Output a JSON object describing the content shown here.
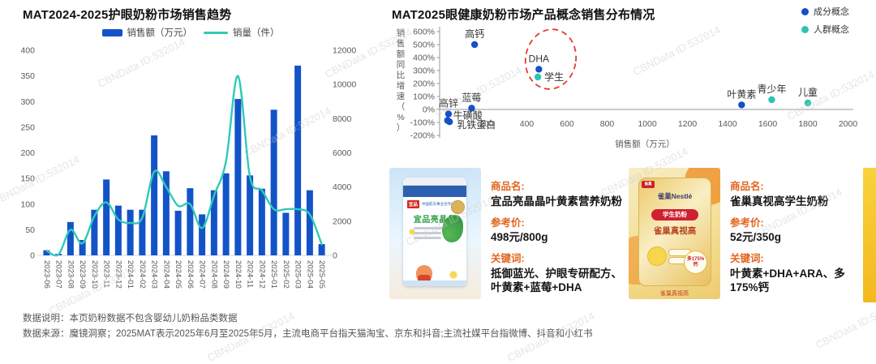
{
  "page": {
    "watermark_text": "CBNData ID:532014",
    "footer": {
      "line1": "数据说明：本页奶粉数据不包含婴幼儿奶粉品类数据",
      "line2": "数据来源：魔镜洞察；2025MAT表示2025年6月至2025年5月，主流电商平台指天猫淘宝、京东和抖音;主流社媒平台指微博、抖音和小红书"
    }
  },
  "left_chart": {
    "title": "MAT2024-2025护眼奶粉市场销售趋势",
    "legend": {
      "bar_label": "销售额（万元）",
      "line_label": "销量（件）"
    }
  },
  "right_chart": {
    "title": "MAT2025眼健康奶粉市场产品概念销售分布情况",
    "legend": {
      "ingredient_label": "成分概念",
      "population_label": "人群概念"
    }
  },
  "chart_data": [
    {
      "type": "bar+line",
      "title": "MAT2024-2025护眼奶粉市场销售趋势",
      "categories": [
        "2023-06",
        "2023-07",
        "2023-08",
        "2023-09",
        "2023-10",
        "2023-11",
        "2023-12",
        "2024-01",
        "2024-02",
        "2024-03",
        "2024-04",
        "2024-05",
        "2024-06",
        "2024-07",
        "2024-08",
        "2024-09",
        "2024-10",
        "2024-11",
        "2024-12",
        "2025-01",
        "2025-02",
        "2025-03",
        "2025-04",
        "2025-05"
      ],
      "series": [
        {
          "name": "销售额（万元）",
          "kind": "bar",
          "axis": "left",
          "color": "#1253c8",
          "values": [
            10,
            3,
            65,
            30,
            89,
            148,
            97,
            89,
            89,
            234,
            164,
            87,
            131,
            80,
            127,
            160,
            305,
            156,
            130,
            284,
            83,
            370,
            127,
            22
          ]
        },
        {
          "name": "销量（件）",
          "kind": "line",
          "axis": "right",
          "color": "#30c9b6",
          "values": [
            280,
            50,
            1500,
            700,
            2300,
            3100,
            2100,
            1900,
            2200,
            4900,
            4000,
            2900,
            3000,
            1600,
            3500,
            5500,
            10500,
            4600,
            3800,
            2700,
            2700,
            2700,
            2400,
            650
          ]
        }
      ],
      "left_axis": {
        "min": 0,
        "max": 400,
        "step": 50
      },
      "right_axis": {
        "min": 0,
        "max": 12000,
        "step": 2000
      },
      "grid": false,
      "legend_position": "top"
    },
    {
      "type": "scatter",
      "title": "MAT2025眼健康奶粉市场产品概念销售分布情况",
      "xlabel": "销售额（万元）",
      "ylabel": "销售额同比增速（%）",
      "x_axis": {
        "min": 0,
        "max": 2000,
        "step": 200
      },
      "y_axis": {
        "min": -200,
        "max": 600,
        "step": 100,
        "unit": "%"
      },
      "legend": [
        "成分概念",
        "人群概念"
      ],
      "colors": [
        "#1450c8",
        "#2cc5b2"
      ],
      "points": [
        {
          "label": "高钙",
          "series": "成分概念",
          "x": 140,
          "y": 500,
          "label_pos": "top"
        },
        {
          "label": "蓝莓",
          "series": "成分概念",
          "x": 125,
          "y": 10,
          "label_pos": "top"
        },
        {
          "label": "高锌",
          "series": "成分概念",
          "x": 10,
          "y": -35,
          "label_pos": "top"
        },
        {
          "label": "牛磺酸",
          "series": "成分概念",
          "x": 5,
          "y": -85,
          "label_pos": "right-up"
        },
        {
          "label": "乳铁蛋白",
          "series": "成分概念",
          "x": 15,
          "y": -95,
          "label_pos": "bottom-right"
        },
        {
          "label": "DHA",
          "series": "成分概念",
          "x": 460,
          "y": 310,
          "label_pos": "top"
        },
        {
          "label": "学生",
          "series": "人群概念",
          "x": 455,
          "y": 250,
          "label_pos": "right"
        },
        {
          "label": "叶黄素",
          "series": "成分概念",
          "x": 1470,
          "y": 35,
          "label_pos": "top"
        },
        {
          "label": "青少年",
          "series": "人群概念",
          "x": 1620,
          "y": 75,
          "label_pos": "top"
        },
        {
          "label": "儿童",
          "series": "人群概念",
          "x": 1800,
          "y": 50,
          "label_pos": "top"
        }
      ],
      "annotation": {
        "type": "dashed-ellipse",
        "around": [
          "DHA",
          "学生"
        ],
        "color": "#e8382f"
      },
      "legend_position": "top-right"
    }
  ],
  "cards": [
    {
      "image": {
        "style": "blue-can",
        "brand_badge": "宜品",
        "brand_note": "中国航天事业合作伙伴",
        "can_title": "宜品亮晶晶"
      },
      "fields": [
        {
          "label": "商品名:",
          "value": "宜品亮晶晶叶黄素营养奶粉"
        },
        {
          "label": "参考价:",
          "value": "498元/800g"
        },
        {
          "label": "关键词:",
          "value": "抵御蓝光、护眼专研配方、叶黄素+蓝莓+DHA"
        }
      ]
    },
    {
      "image": {
        "style": "gold-pouch",
        "brand": "雀巢Nestlé",
        "ribbon": "学生奶粉",
        "pouch_title": "雀巢真视高",
        "badge": "多175%钙",
        "caption": "雀巢真视高"
      },
      "fields": [
        {
          "label": "商品名:",
          "value": "雀巢真视高学生奶粉"
        },
        {
          "label": "参考价:",
          "value": "52元/350g"
        },
        {
          "label": "关键词:",
          "value": "叶黄素+DHA+ARA、多175%钙"
        }
      ]
    }
  ]
}
